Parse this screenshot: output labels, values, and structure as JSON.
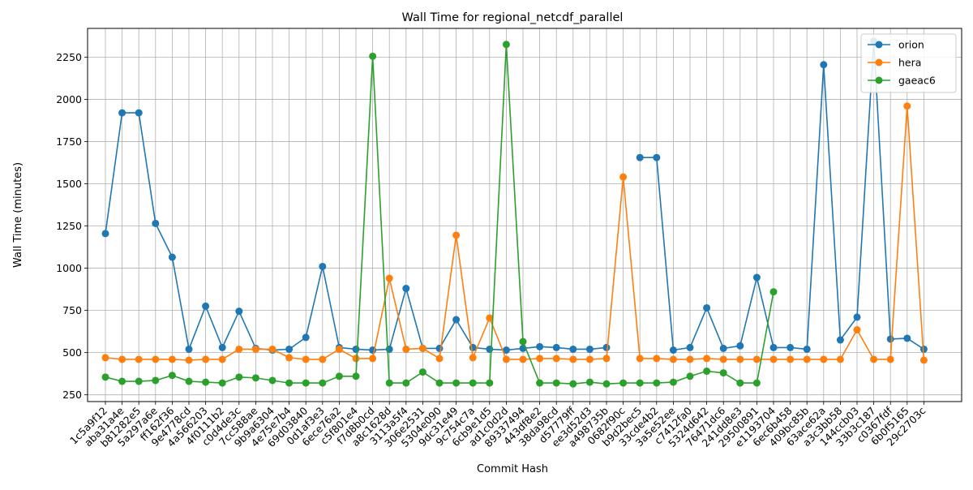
{
  "chart_data": {
    "type": "line",
    "title": "Wall Time for regional_netcdf_parallel",
    "xlabel": "Commit Hash",
    "ylabel": "Wall Time (minutes)",
    "ylim": [
      210,
      2420
    ],
    "yticks": [
      250,
      500,
      750,
      1000,
      1250,
      1500,
      1750,
      2000,
      2250
    ],
    "grid": true,
    "legend_position": "top-right",
    "categories": [
      "1c5a9f12",
      "aba31a4e",
      "b81282e5",
      "5a297a6e",
      "ff162f36",
      "9e4778cd",
      "4a566203",
      "4f0111b2",
      "c0d4de3c",
      "7cc588ae",
      "9b9a6304",
      "4e75e7b4",
      "69d03840",
      "0d1af3e3",
      "6ece76a2",
      "c5f801e4",
      "f7d8b0cd",
      "a8c1628d",
      "3113a5f4",
      "306e2531",
      "5304e090",
      "9dc31e49",
      "9c754c7a",
      "6cb9e1d5",
      "ad1c0d2d",
      "89337494",
      "443df8e2",
      "38da98cd",
      "d57779ff",
      "ee3d52d3",
      "a498735b",
      "0682f90c",
      "b9d2bec5",
      "33cde4b2",
      "3a5e52ee",
      "c7412fa0",
      "5324d642",
      "76471dc6",
      "241dd8e3",
      "29500891",
      "e1193704",
      "6ec6b458",
      "409bc85b",
      "63ace62a",
      "a3c3bb58",
      "144ccb03",
      "33b3c187",
      "c0367fdf",
      "6b0f5165",
      "29c2703c"
    ],
    "series": [
      {
        "name": "orion",
        "color": "#1f77b4",
        "values": [
          1205,
          1920,
          1920,
          1265,
          1065,
          520,
          775,
          530,
          745,
          525,
          515,
          520,
          590,
          1010,
          530,
          520,
          515,
          520,
          880,
          525,
          525,
          695,
          530,
          520,
          515,
          525,
          535,
          530,
          520,
          520,
          530,
          null,
          1655,
          1655,
          515,
          530,
          765,
          525,
          540,
          945,
          530,
          530,
          520,
          2205,
          575,
          710,
          2345,
          580,
          585,
          520
        ]
      },
      {
        "name": "hera",
        "color": "#ff7f0e",
        "values": [
          470,
          460,
          460,
          460,
          460,
          455,
          460,
          460,
          520,
          520,
          520,
          470,
          460,
          460,
          520,
          465,
          465,
          940,
          520,
          525,
          465,
          1195,
          470,
          705,
          460,
          460,
          465,
          465,
          460,
          460,
          465,
          1540,
          465,
          465,
          460,
          460,
          465,
          460,
          460,
          460,
          460,
          460,
          460,
          460,
          460,
          635,
          460,
          460,
          1960,
          455
        ]
      },
      {
        "name": "gaeac6",
        "color": "#2ca02c",
        "values": [
          355,
          330,
          330,
          335,
          365,
          330,
          325,
          320,
          355,
          350,
          335,
          320,
          320,
          320,
          360,
          360,
          2255,
          320,
          320,
          385,
          320,
          320,
          320,
          320,
          2325,
          565,
          320,
          320,
          315,
          325,
          315,
          320,
          320,
          320,
          325,
          360,
          390,
          380,
          320,
          320,
          860,
          null,
          null,
          null,
          null,
          null,
          null,
          null,
          null,
          null
        ]
      }
    ]
  }
}
